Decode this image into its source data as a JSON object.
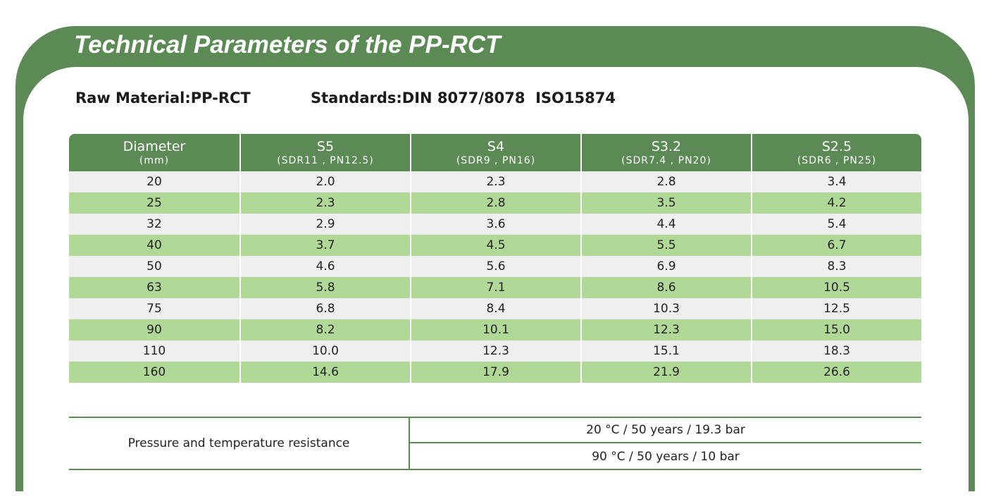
{
  "header": {
    "title": "Technical Parameters of the PP-RCT",
    "raw_material": "Raw Material:PP-RCT",
    "standards": "Standards:DIN 8077/8078  ISO15874"
  },
  "table": {
    "columns": [
      {
        "name": "Diameter",
        "sub": "(mm)"
      },
      {
        "name": "S5",
        "sub": "(SDR11 , PN12.5)"
      },
      {
        "name": "S4",
        "sub": "(SDR9 , PN16)"
      },
      {
        "name": "S3.2",
        "sub": "(SDR7.4 , PN20)"
      },
      {
        "name": "S2.5",
        "sub": "(SDR6 , PN25)"
      }
    ],
    "rows": [
      [
        "20",
        "2.0",
        "2.3",
        "2.8",
        "3.4"
      ],
      [
        "25",
        "2.3",
        "2.8",
        "3.5",
        "4.2"
      ],
      [
        "32",
        "2.9",
        "3.6",
        "4.4",
        "5.4"
      ],
      [
        "40",
        "3.7",
        "4.5",
        "5.5",
        "6.7"
      ],
      [
        "50",
        "4.6",
        "5.6",
        "6.9",
        "8.3"
      ],
      [
        "63",
        "5.8",
        "7.1",
        "8.6",
        "10.5"
      ],
      [
        "75",
        "6.8",
        "8.4",
        "10.3",
        "12.5"
      ],
      [
        "90",
        "8.2",
        "10.1",
        "12.3",
        "15.0"
      ],
      [
        "110",
        "10.0",
        "12.3",
        "15.1",
        "18.3"
      ],
      [
        "160",
        "14.6",
        "17.9",
        "21.9",
        "26.6"
      ]
    ]
  },
  "resistance": {
    "label": "Pressure and temperature resistance",
    "values": [
      "20 °C / 50 years / 19.3 bar",
      "90 °C / 50 years / 10 bar"
    ]
  }
}
